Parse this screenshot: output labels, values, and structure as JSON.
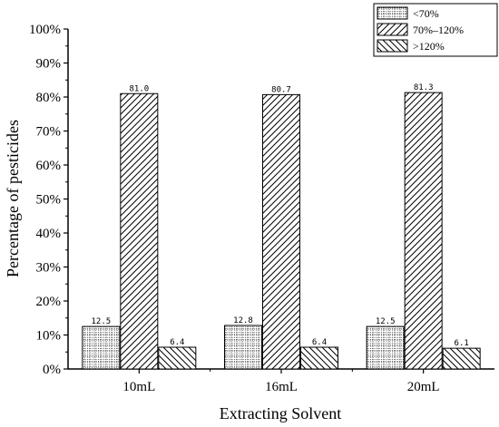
{
  "chart_data": {
    "type": "bar",
    "title": "",
    "xlabel": "Extracting Solvent",
    "ylabel": "Percentage of pesticides",
    "categories": [
      "10mL",
      "16mL",
      "20mL"
    ],
    "series": [
      {
        "name": "<70%",
        "values": [
          12.5,
          12.8,
          12.5
        ],
        "labels": [
          "12.5",
          "12.8",
          "12.5"
        ],
        "pattern": "dots"
      },
      {
        "name": "70%–120%",
        "values": [
          81.0,
          80.7,
          81.3
        ],
        "labels": [
          "81.0",
          "80.7",
          "81.3"
        ],
        "pattern": "diag-fwd"
      },
      {
        "name": ">120%",
        "values": [
          6.4,
          6.4,
          6.1
        ],
        "labels": [
          "6.4",
          "6.4",
          "6.1"
        ],
        "pattern": "diag-back"
      }
    ],
    "ylim": [
      0,
      100
    ],
    "yticks": [
      0,
      10,
      20,
      30,
      40,
      50,
      60,
      70,
      80,
      90,
      100
    ],
    "ytick_labels": [
      "0%",
      "10%",
      "20%",
      "30%",
      "40%",
      "50%",
      "60%",
      "70%",
      "80%",
      "90%",
      "100%"
    ],
    "grid": false,
    "legend_position": "top-right",
    "colors": {
      "bar_fill": "#ffffff",
      "stroke": "#000000"
    }
  }
}
